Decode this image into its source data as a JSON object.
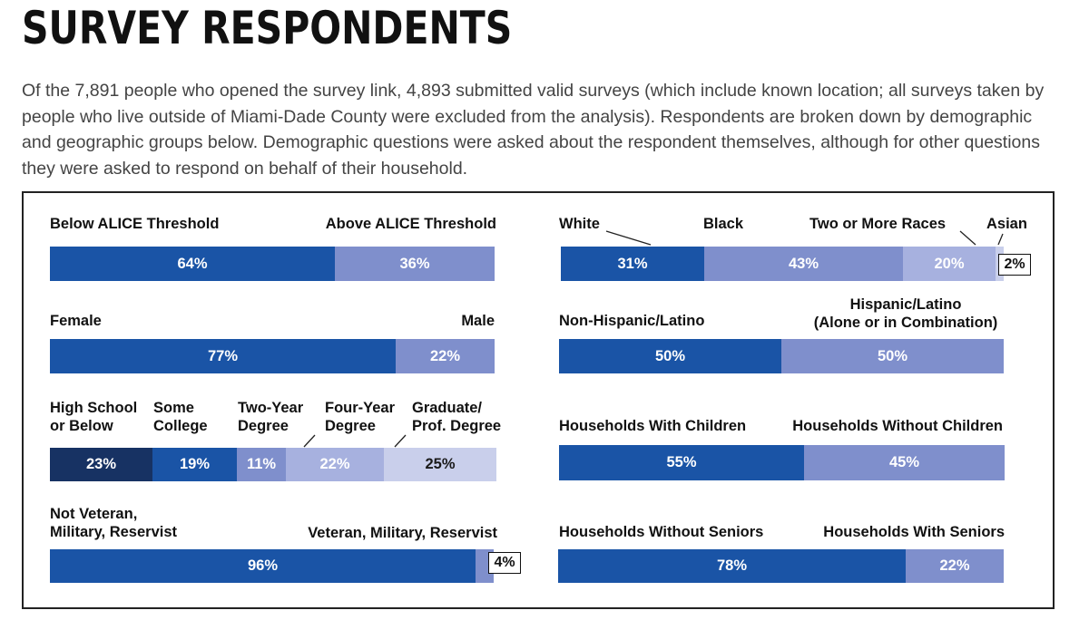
{
  "page": {
    "title": "SURVEY RESPONDENTS",
    "intro": "Of the 7,891 people who opened the survey link, 4,893 submitted valid surveys (which include known location; all surveys taken by people who live outside of Miami-Dade County were excluded from the analysis). Respondents are broken down by demographic and geographic groups below. Demographic questions were asked about the respondent themselves, although for other questions they were asked to respond on behalf of their household."
  },
  "colors": {
    "dark_blue": "#1a54a6",
    "mid_blue": "#7f8fcc",
    "light_blue": "#a7b1df",
    "pale_blue": "#c9cfeb",
    "navy": "#173263",
    "outline_blue": "#2c5f9e"
  },
  "chart_data": [
    {
      "type": "bar",
      "categories": [
        "Below ALICE Threshold",
        "Above ALICE Threshold"
      ],
      "values": [
        64,
        36
      ],
      "value_labels": [
        "64%",
        "36%"
      ]
    },
    {
      "type": "bar",
      "categories": [
        "Female",
        "Male"
      ],
      "values": [
        77,
        22
      ],
      "value_labels": [
        "77%",
        "22%"
      ]
    },
    {
      "type": "bar",
      "categories": [
        "High School or Below",
        "Some College",
        "Two-Year Degree",
        "Four-Year Degree",
        "Graduate/ Prof. Degree"
      ],
      "values": [
        23,
        19,
        11,
        22,
        25
      ],
      "value_labels": [
        "23%",
        "19%",
        "11%",
        "22%",
        "25%"
      ]
    },
    {
      "type": "bar",
      "categories": [
        "Not Veteran, Military, Reservist",
        "Veteran, Military, Reservist"
      ],
      "values": [
        96,
        4
      ],
      "value_labels": [
        "96%",
        "4%"
      ]
    },
    {
      "type": "bar",
      "categories": [
        "White",
        "Black",
        "Two or More Races",
        "Asian"
      ],
      "values": [
        31,
        43,
        20,
        2
      ],
      "value_labels": [
        "31%",
        "43%",
        "20%",
        "2%"
      ]
    },
    {
      "type": "bar",
      "categories": [
        "Non-Hispanic/Latino",
        "Hispanic/Latino (Alone or in Combination)"
      ],
      "values": [
        50,
        50
      ],
      "value_labels": [
        "50%",
        "50%"
      ]
    },
    {
      "type": "bar",
      "categories": [
        "Households With Children",
        "Households Without Children"
      ],
      "values": [
        55,
        45
      ],
      "value_labels": [
        "55%",
        "45%"
      ]
    },
    {
      "type": "bar",
      "categories": [
        "Households Without Seniors",
        "Households With Seniors"
      ],
      "values": [
        78,
        22
      ],
      "value_labels": [
        "78%",
        "22%"
      ]
    }
  ],
  "labels": {
    "alice_below": "Below ALICE Threshold",
    "alice_above": "Above ALICE Threshold",
    "female": "Female",
    "male": "Male",
    "edu_hs_1": "High School",
    "edu_hs_2": "or Below",
    "edu_sc_1": "Some",
    "edu_sc_2": "College",
    "edu_2y_1": "Two-Year",
    "edu_2y_2": "Degree",
    "edu_4y_1": "Four-Year",
    "edu_4y_2": "Degree",
    "edu_gr_1": "Graduate/",
    "edu_gr_2": "Prof. Degree",
    "vet_not_1": "Not Veteran,",
    "vet_not_2": "Military, Reservist",
    "vet_yes": "Veteran, Military, Reservist",
    "white": "White",
    "black": "Black",
    "two_more": "Two or More Races",
    "asian": "Asian",
    "non_hisp": "Non-Hispanic/Latino",
    "hisp_1": "Hispanic/Latino",
    "hisp_2": "(Alone or in Combination)",
    "hh_with_children": "Households With Children",
    "hh_without_children": "Households Without Children",
    "hh_without_seniors": "Households Without Seniors",
    "hh_with_seniors": "Households With Seniors"
  }
}
